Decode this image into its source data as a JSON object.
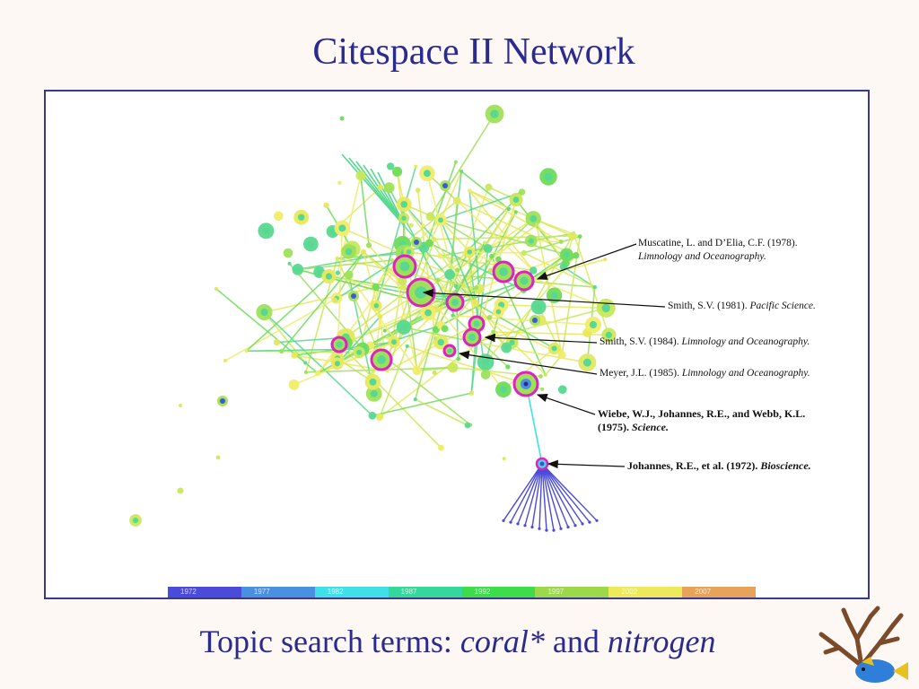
{
  "title": "Citespace II Network",
  "caption": {
    "prefix": "Topic search terms: ",
    "term1": "coral*",
    "joiner": " and ",
    "term2": "nitrogen"
  },
  "annotations": [
    {
      "line1": "Muscatine, L. and D’Elia, C.F. (1978).",
      "line2_italic": "Limnology and Oceanography."
    },
    {
      "plain": "Smith, S.V. (1981). ",
      "italic": "Pacific Science."
    },
    {
      "plain": "Smith, S.V. (1984). ",
      "italic": "Limnology and Oceanography."
    },
    {
      "plain": "Meyer, J.L. (1985). ",
      "italic": "Limnology and Oceanography."
    },
    {
      "line1": "Wiebe, W.J., Johannes, R.E., and Webb, K.L.",
      "line2_plain": "(1975). ",
      "line2_italic": "Science."
    },
    {
      "plain": "Johannes, R.E., et al. (1972). ",
      "italic": "Bioscience."
    }
  ],
  "timeline": {
    "years": [
      "1972",
      "1977",
      "1982",
      "1987",
      "1992",
      "1997",
      "2002",
      "2007"
    ],
    "colors": [
      "#4b4bd9",
      "#4a90e0",
      "#3fe0e8",
      "#36d79a",
      "#3ddc4a",
      "#9bd94a",
      "#ece95a",
      "#e8a35a"
    ]
  },
  "colors": {
    "title": "#2b2b8f",
    "frame": "#3a3a8c",
    "highlight_ring": "#e020c0"
  }
}
